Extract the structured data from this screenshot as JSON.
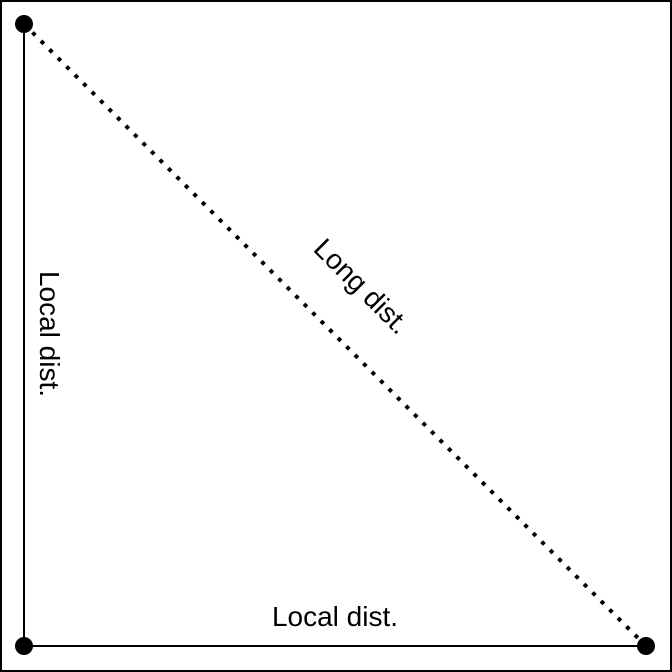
{
  "diagram": {
    "labels": {
      "vertical_edge": "Local dist.",
      "horizontal_edge": "Local dist.",
      "diagonal_edge": "Long dist."
    },
    "nodes": [
      "top-left",
      "bottom-left",
      "bottom-right"
    ],
    "edges": [
      {
        "from": "top-left",
        "to": "bottom-left",
        "style": "solid"
      },
      {
        "from": "bottom-left",
        "to": "bottom-right",
        "style": "solid"
      },
      {
        "from": "top-left",
        "to": "bottom-right",
        "style": "dotted"
      }
    ],
    "colors": {
      "line": "#000000",
      "background": "#ffffff"
    }
  }
}
